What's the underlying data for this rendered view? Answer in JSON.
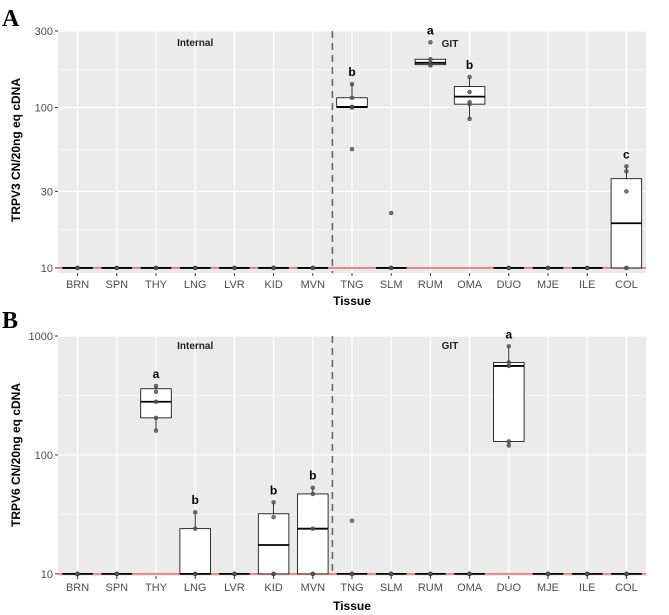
{
  "chart_data": [
    {
      "panel": "A",
      "type": "box",
      "ylabel": "TRPV3 CN/20ng eq cDNA",
      "xlabel": "Tissue",
      "yscale": "log",
      "ylim": [
        9.3,
        300
      ],
      "yticks": [
        10,
        30,
        100,
        300
      ],
      "reference_line": 10,
      "divider_after": "MVN",
      "group_labels": [
        "Internal",
        "GIT"
      ],
      "categories": [
        "BRN",
        "SPN",
        "THY",
        "LNG",
        "LVR",
        "KID",
        "MVN",
        "TNG",
        "SLM",
        "RUM",
        "OMA",
        "DUO",
        "MJE",
        "ILE",
        "COL"
      ],
      "boxes": [
        {
          "cat": "BRN",
          "min": 10,
          "q1": 10,
          "med": 10,
          "q3": 10,
          "max": 10,
          "pts": [
            10,
            10,
            10,
            10,
            10
          ],
          "sig": ""
        },
        {
          "cat": "SPN",
          "min": 10,
          "q1": 10,
          "med": 10,
          "q3": 10,
          "max": 10,
          "pts": [
            10,
            10,
            10,
            10,
            10
          ],
          "sig": ""
        },
        {
          "cat": "THY",
          "min": 10,
          "q1": 10,
          "med": 10,
          "q3": 10,
          "max": 10,
          "pts": [
            10,
            10,
            10,
            10,
            10
          ],
          "sig": ""
        },
        {
          "cat": "LNG",
          "min": 10,
          "q1": 10,
          "med": 10,
          "q3": 10,
          "max": 10,
          "pts": [
            10,
            10,
            10,
            10,
            10
          ],
          "sig": ""
        },
        {
          "cat": "LVR",
          "min": 10,
          "q1": 10,
          "med": 10,
          "q3": 10,
          "max": 10,
          "pts": [
            10,
            10,
            10,
            10,
            10
          ],
          "sig": ""
        },
        {
          "cat": "KID",
          "min": 10,
          "q1": 10,
          "med": 10,
          "q3": 10,
          "max": 10,
          "pts": [
            10,
            10,
            10,
            10,
            10
          ],
          "sig": ""
        },
        {
          "cat": "MVN",
          "min": 10,
          "q1": 10,
          "med": 10,
          "q3": 10,
          "max": 10,
          "pts": [
            10,
            10,
            10,
            10,
            10
          ],
          "sig": ""
        },
        {
          "cat": "TNG",
          "min": 100,
          "q1": 100,
          "med": 101,
          "q3": 115,
          "max": 140,
          "pts": [
            140,
            115,
            101,
            100,
            55
          ],
          "sig": "b"
        },
        {
          "cat": "SLM",
          "min": 10,
          "q1": 10,
          "med": 10,
          "q3": 10,
          "max": 10,
          "pts": [
            22,
            10,
            10,
            10,
            10
          ],
          "sig": ""
        },
        {
          "cat": "RUM",
          "min": 185,
          "q1": 185,
          "med": 190,
          "q3": 200,
          "max": 200,
          "pts": [
            255,
            200,
            190,
            185,
            183
          ],
          "sig": "a"
        },
        {
          "cat": "OMA",
          "min": 85,
          "q1": 105,
          "med": 117,
          "q3": 135,
          "max": 155,
          "pts": [
            155,
            125,
            108,
            105,
            85
          ],
          "sig": "b"
        },
        {
          "cat": "DUO",
          "min": 10,
          "q1": 10,
          "med": 10,
          "q3": 10,
          "max": 10,
          "pts": [
            10,
            10,
            10,
            10,
            10
          ],
          "sig": ""
        },
        {
          "cat": "MJE",
          "min": 10,
          "q1": 10,
          "med": 10,
          "q3": 10,
          "max": 10,
          "pts": [
            10,
            10,
            10,
            10,
            10
          ],
          "sig": ""
        },
        {
          "cat": "ILE",
          "min": 10,
          "q1": 10,
          "med": 10,
          "q3": 10,
          "max": 10,
          "pts": [
            10,
            10,
            10,
            10,
            10
          ],
          "sig": ""
        },
        {
          "cat": "COL",
          "min": 10,
          "q1": 10,
          "med": 19,
          "q3": 36,
          "max": 43,
          "pts": [
            43,
            40,
            30,
            10,
            10
          ],
          "sig": "c"
        }
      ]
    },
    {
      "panel": "B",
      "type": "box",
      "ylabel": "TRPV6 CN/20ng eq cDNA",
      "xlabel": "Tissue",
      "yscale": "log",
      "ylim": [
        9.6,
        1000
      ],
      "yticks": [
        10,
        100,
        1000
      ],
      "reference_line": 10,
      "divider_after": "MVN",
      "group_labels": [
        "Internal",
        "GIT"
      ],
      "categories": [
        "BRN",
        "SPN",
        "THY",
        "LNG",
        "LVR",
        "KID",
        "MVN",
        "TNG",
        "SLM",
        "RUM",
        "OMA",
        "DUO",
        "MJE",
        "ILE",
        "COL"
      ],
      "boxes": [
        {
          "cat": "BRN",
          "min": 10,
          "q1": 10,
          "med": 10,
          "q3": 10,
          "max": 10,
          "pts": [
            10,
            10,
            10,
            10,
            10
          ],
          "sig": ""
        },
        {
          "cat": "SPN",
          "min": 10,
          "q1": 10,
          "med": 10,
          "q3": 10,
          "max": 10,
          "pts": [
            10,
            10,
            10,
            10,
            10
          ],
          "sig": ""
        },
        {
          "cat": "THY",
          "min": 160,
          "q1": 205,
          "med": 280,
          "q3": 360,
          "max": 380,
          "pts": [
            380,
            340,
            280,
            205,
            160
          ],
          "sig": "a"
        },
        {
          "cat": "LNG",
          "min": 10,
          "q1": 10,
          "med": 10,
          "q3": 24,
          "max": 33,
          "pts": [
            33,
            24,
            10,
            10,
            10
          ],
          "sig": "b"
        },
        {
          "cat": "LVR",
          "min": 10,
          "q1": 10,
          "med": 10,
          "q3": 10,
          "max": 10,
          "pts": [
            10,
            10,
            10,
            10,
            10
          ],
          "sig": ""
        },
        {
          "cat": "KID",
          "min": 10,
          "q1": 10,
          "med": 17.5,
          "q3": 32,
          "max": 40,
          "pts": [
            40,
            30,
            10,
            10,
            10
          ],
          "sig": "b"
        },
        {
          "cat": "MVN",
          "min": 10,
          "q1": 10,
          "med": 24,
          "q3": 47,
          "max": 53,
          "pts": [
            53,
            47,
            24,
            10,
            10
          ],
          "sig": "b"
        },
        {
          "cat": "TNG",
          "min": 10,
          "q1": 10,
          "med": 10,
          "q3": 10,
          "max": 10,
          "pts": [
            28,
            10,
            10,
            10,
            10
          ],
          "sig": ""
        },
        {
          "cat": "SLM",
          "min": 10,
          "q1": 10,
          "med": 10,
          "q3": 10,
          "max": 10,
          "pts": [
            10,
            10,
            10,
            10,
            10
          ],
          "sig": ""
        },
        {
          "cat": "RUM",
          "min": 10,
          "q1": 10,
          "med": 10,
          "q3": 10,
          "max": 10,
          "pts": [
            10,
            10,
            10,
            10,
            10
          ],
          "sig": ""
        },
        {
          "cat": "OMA",
          "min": 10,
          "q1": 10,
          "med": 10,
          "q3": 10,
          "max": 10,
          "pts": [
            10,
            10,
            10,
            10,
            10
          ],
          "sig": ""
        },
        {
          "cat": "DUO",
          "min": 120,
          "q1": 130,
          "med": 560,
          "q3": 600,
          "max": 820,
          "pts": [
            820,
            600,
            560,
            130,
            120
          ],
          "sig": "a"
        },
        {
          "cat": "MJE",
          "min": 10,
          "q1": 10,
          "med": 10,
          "q3": 10,
          "max": 10,
          "pts": [
            10,
            10,
            10,
            10,
            10
          ],
          "sig": ""
        },
        {
          "cat": "ILE",
          "min": 10,
          "q1": 10,
          "med": 10,
          "q3": 10,
          "max": 10,
          "pts": [
            10,
            10,
            10,
            10,
            10
          ],
          "sig": ""
        },
        {
          "cat": "COL",
          "min": 10,
          "q1": 10,
          "med": 10,
          "q3": 10,
          "max": 10,
          "pts": [
            10,
            10,
            10,
            10,
            10
          ],
          "sig": ""
        }
      ]
    }
  ],
  "colors": {
    "panel_background": "#ebebeb",
    "grid": "#ffffff",
    "reference_line": "#e8736b",
    "divider": "#666666",
    "box_fill": "#ffffff",
    "box_stroke": "#000000",
    "point": "#555555"
  }
}
